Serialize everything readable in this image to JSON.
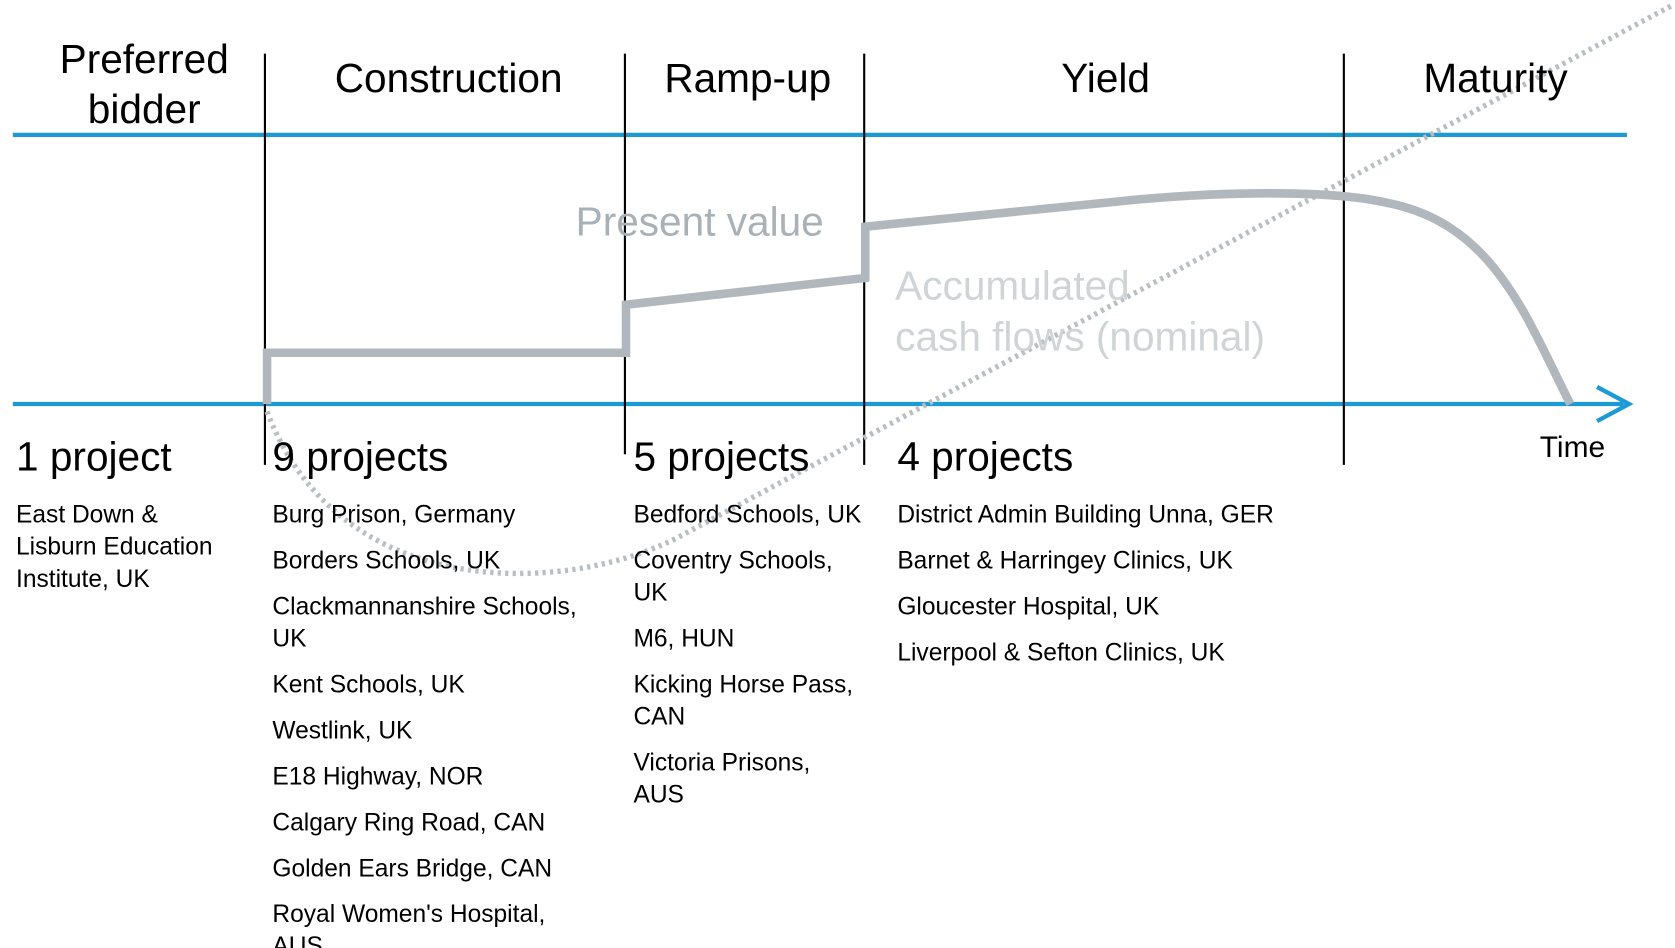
{
  "stages": [
    {
      "label": [
        "Preferred",
        "bidder"
      ]
    },
    {
      "label": [
        "Construction"
      ]
    },
    {
      "label": [
        "Ramp-up"
      ]
    },
    {
      "label": [
        "Yield"
      ]
    },
    {
      "label": [
        "Maturity"
      ]
    }
  ],
  "curves": {
    "present_value": "Present value",
    "accumulated": [
      "Accumulated",
      "cash flows (nominal)"
    ]
  },
  "axis_label": "Time",
  "columns": [
    {
      "count": "1 project",
      "items": [
        [
          "East Down &",
          "Lisburn Education",
          "Institute, UK"
        ]
      ]
    },
    {
      "count": "9 projects",
      "items": [
        [
          "Burg Prison, Germany"
        ],
        [
          "Borders Schools, UK"
        ],
        [
          "Clackmannanshire Schools,",
          "UK"
        ],
        [
          "Kent Schools, UK"
        ],
        [
          "Westlink, UK"
        ],
        [
          "E18 Highway, NOR"
        ],
        [
          "Calgary Ring Road, CAN"
        ],
        [
          "Golden Ears Bridge, CAN"
        ],
        [
          "Royal Women's Hospital,",
          "AUS"
        ]
      ]
    },
    {
      "count": "5 projects",
      "items": [
        [
          "Bedford Schools, UK"
        ],
        [
          "Coventry Schools,",
          "UK"
        ],
        [
          "M6, HUN"
        ],
        [
          "Kicking Horse Pass,",
          "CAN"
        ],
        [
          "Victoria Prisons,",
          "AUS"
        ]
      ]
    },
    {
      "count": "4 projects",
      "items": [
        [
          "District Admin Building Unna, GER"
        ],
        [
          "Barnet & Harringey Clinics, UK"
        ],
        [
          "Gloucester Hospital, UK"
        ],
        [
          "Liverpool & Sefton Clinics, UK"
        ]
      ]
    }
  ]
}
